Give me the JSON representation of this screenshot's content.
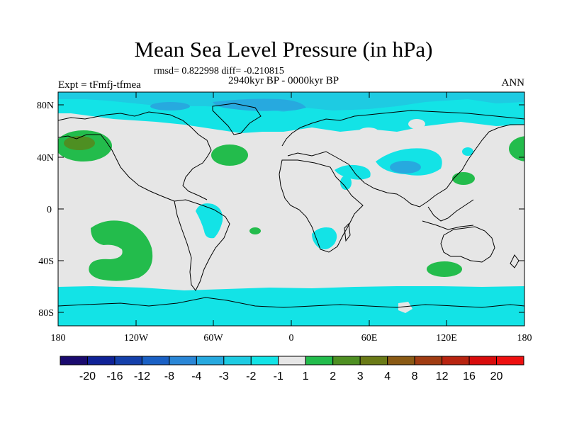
{
  "map": {
    "title": "Mean Sea Level Pressure (in hPa)",
    "stats": "rmsd= 0.822998 diff= -0.210815",
    "experiment": "Expt = tFmfj-tfmea",
    "period": "2940kyr BP - 0000kyr BP",
    "season": "ANN",
    "lat_labels": [
      "80N",
      "40N",
      "0",
      "40S",
      "80S"
    ],
    "lon_labels": [
      "180",
      "120W",
      "60W",
      "0",
      "60E",
      "120E",
      "180"
    ]
  },
  "colorbar": {
    "labels": [
      "-20",
      "-16",
      "-12",
      "-8",
      "-4",
      "-3",
      "-2",
      "-1",
      "1",
      "2",
      "3",
      "4",
      "8",
      "12",
      "16",
      "20"
    ],
    "colors": [
      "#1a0a6e",
      "#0f2296",
      "#1440aa",
      "#1a60c4",
      "#2a86d6",
      "#27a9df",
      "#1ecbe2",
      "#13e3e6",
      "#e6e6e6",
      "#23bc4c",
      "#4e8f22",
      "#6a7a16",
      "#8a5a14",
      "#a03c12",
      "#b82410",
      "#d80c0c",
      "#ee1010"
    ]
  },
  "colors": {
    "background": "#e6e6e6",
    "cyan": "#13e3e6",
    "light_blue": "#1ecbe2",
    "blue": "#27a9df",
    "green": "#23bc4c",
    "dark_green": "#4e8f22"
  }
}
